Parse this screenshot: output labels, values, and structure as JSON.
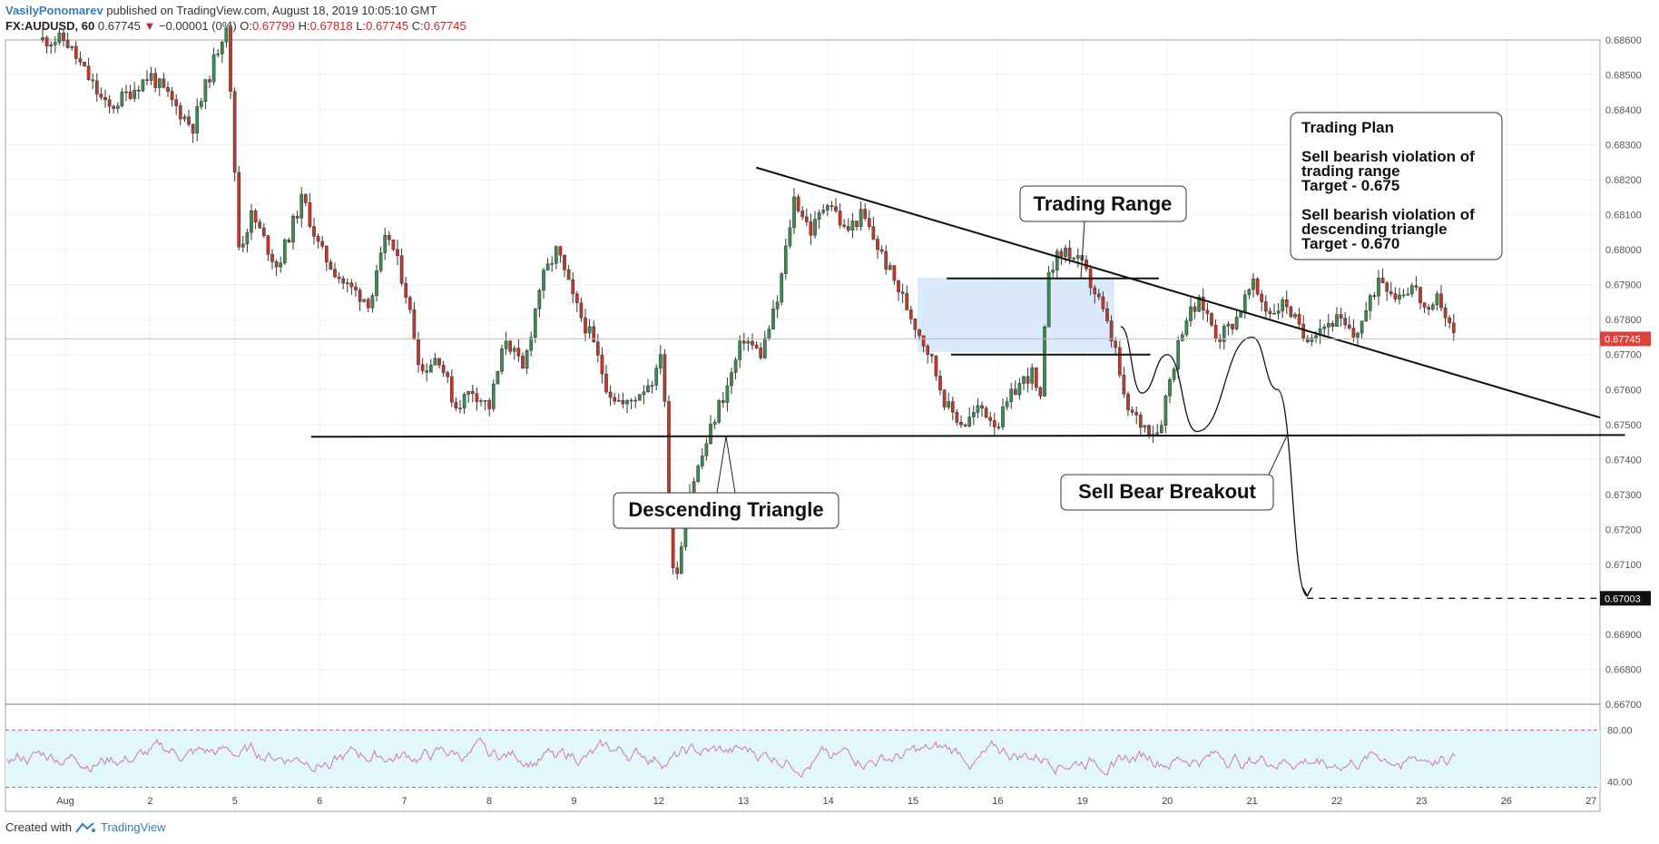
{
  "header": {
    "author": "VasilyPonomarev",
    "published": "published on TradingView.com, August 18, 2019 10:05:10 GMT",
    "symbol": "FX:AUDUSD, 60",
    "last": "0.67745",
    "change": "−0.00001 (0%)",
    "o_label": "O:",
    "o": "0.67799",
    "h_label": "H:",
    "h": "0.67818",
    "l_label": "L:",
    "l": "0.67745",
    "c_label": "C:",
    "c": "0.67745",
    "down_color": "#c62828"
  },
  "footer": {
    "created": "Created with",
    "brand": "TradingView",
    "logo_icon": "tradingview-logo-icon"
  },
  "annotations": {
    "trading_range": "Trading Range",
    "descending_triangle": "Descending Triangle",
    "sell_breakout": "Sell Bear Breakout",
    "plan": [
      "Trading Plan",
      "",
      "Sell bearish violation of",
      "trading range",
      "Target - 0.675",
      "",
      "Sell bearish violation of",
      "descending triangle",
      "Target - 0.670"
    ]
  },
  "chart_data": {
    "type": "candlestick",
    "symbol": "FX:AUDUSD",
    "interval": "60",
    "ylim": [
      0.667,
      0.686
    ],
    "yticks": [
      "0.68600",
      "0.68500",
      "0.68400",
      "0.68300",
      "0.68200",
      "0.68100",
      "0.68000",
      "0.67900",
      "0.67800",
      "0.67700",
      "0.67600",
      "0.67500",
      "0.67400",
      "0.67300",
      "0.67200",
      "0.67100",
      "0.67000",
      "0.66900",
      "0.66800",
      "0.66700"
    ],
    "xticks": [
      "Aug",
      "2",
      "5",
      "6",
      "7",
      "8",
      "9",
      "12",
      "13",
      "14",
      "15",
      "16",
      "19",
      "20",
      "21",
      "22",
      "23",
      "26",
      "27"
    ],
    "grid": true,
    "last_price_label": "0.67745",
    "target_label": "0.67003",
    "up_color": "#3d8c4f",
    "down_color": "#c0392b",
    "path": [
      [
        0,
        0.686
      ],
      [
        0.5,
        0.684
      ],
      [
        1,
        0.685
      ],
      [
        1.5,
        0.6835
      ],
      [
        1.9,
        0.6865
      ],
      [
        2.05,
        0.68
      ],
      [
        2.2,
        0.681
      ],
      [
        2.5,
        0.6795
      ],
      [
        2.8,
        0.6815
      ],
      [
        3,
        0.68
      ],
      [
        3.3,
        0.679
      ],
      [
        3.6,
        0.6785
      ],
      [
        3.8,
        0.6805
      ],
      [
        4,
        0.679
      ],
      [
        4.2,
        0.6765
      ],
      [
        4.4,
        0.677
      ],
      [
        4.6,
        0.6755
      ],
      [
        4.8,
        0.676
      ],
      [
        5,
        0.6755
      ],
      [
        5.2,
        0.6775
      ],
      [
        5.4,
        0.6765
      ],
      [
        5.6,
        0.679
      ],
      [
        5.8,
        0.68
      ],
      [
        6,
        0.6785
      ],
      [
        6.2,
        0.6775
      ],
      [
        6.4,
        0.676
      ],
      [
        6.6,
        0.6755
      ],
      [
        6.8,
        0.676
      ],
      [
        7,
        0.6765
      ],
      [
        7.05,
        0.678
      ],
      [
        7.1,
        0.6725
      ],
      [
        7.2,
        0.6705
      ],
      [
        7.35,
        0.673
      ],
      [
        7.5,
        0.674
      ],
      [
        7.7,
        0.6755
      ],
      [
        7.8,
        0.676
      ],
      [
        8,
        0.6775
      ],
      [
        8.2,
        0.677
      ],
      [
        8.4,
        0.6785
      ],
      [
        8.6,
        0.6815
      ],
      [
        8.8,
        0.6805
      ],
      [
        9,
        0.6815
      ],
      [
        9.2,
        0.6805
      ],
      [
        9.4,
        0.681
      ],
      [
        9.6,
        0.68
      ],
      [
        9.8,
        0.679
      ],
      [
        10,
        0.678
      ],
      [
        10.2,
        0.677
      ],
      [
        10.4,
        0.6755
      ],
      [
        10.6,
        0.675
      ],
      [
        10.8,
        0.6755
      ],
      [
        11,
        0.675
      ],
      [
        11.2,
        0.676
      ],
      [
        11.4,
        0.6765
      ],
      [
        11.5,
        0.6755
      ],
      [
        11.6,
        0.6795
      ],
      [
        11.8,
        0.68
      ],
      [
        12,
        0.6795
      ],
      [
        12.2,
        0.6785
      ],
      [
        12.4,
        0.677
      ],
      [
        12.5,
        0.6755
      ],
      [
        12.7,
        0.675
      ],
      [
        12.9,
        0.6748
      ],
      [
        13,
        0.676
      ],
      [
        13.2,
        0.678
      ],
      [
        13.4,
        0.6785
      ],
      [
        13.6,
        0.6775
      ],
      [
        13.8,
        0.678
      ],
      [
        14,
        0.679
      ],
      [
        14.2,
        0.6782
      ],
      [
        14.4,
        0.6785
      ],
      [
        14.6,
        0.6775
      ],
      [
        14.8,
        0.6778
      ],
      [
        15,
        0.678
      ],
      [
        15.2,
        0.6775
      ],
      [
        15.4,
        0.6785
      ],
      [
        15.5,
        0.6793
      ],
      [
        15.7,
        0.6787
      ],
      [
        15.9,
        0.679
      ],
      [
        16.1,
        0.678
      ],
      [
        16.2,
        0.6787
      ],
      [
        16.3,
        0.678
      ],
      [
        16.4,
        0.67745
      ]
    ],
    "trendlines": [
      {
        "name": "triangle-resistance",
        "x": [
          8.15,
          18.4
        ],
        "y": [
          0.68235,
          0.6752
        ]
      },
      {
        "name": "triangle-support",
        "x": [
          2.9,
          18.4
        ],
        "y": [
          0.67465,
          0.6747
        ]
      },
      {
        "name": "range-top",
        "x": [
          10.4,
          12.9
        ],
        "y": [
          0.67918,
          0.67918
        ]
      },
      {
        "name": "range-bottom",
        "x": [
          10.45,
          12.8
        ],
        "y": [
          0.677,
          0.677
        ]
      }
    ],
    "projection": [
      [
        12.45,
        0.6778
      ],
      [
        12.7,
        0.6759
      ],
      [
        13.0,
        0.677
      ],
      [
        13.35,
        0.6748
      ],
      [
        14.0,
        0.6775
      ],
      [
        14.3,
        0.676
      ],
      [
        14.65,
        0.6701
      ]
    ],
    "target_line": {
      "from_x": 14.65,
      "y": 0.67003
    },
    "rsi": {
      "upper": "80.00",
      "lower": "40.00",
      "levels": [
        80,
        40
      ]
    }
  }
}
